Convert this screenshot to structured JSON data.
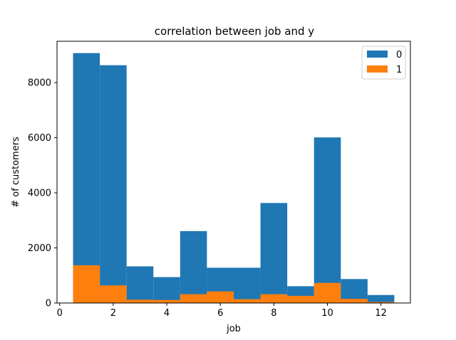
{
  "chart_data": {
    "type": "bar",
    "title": "correlation between job and y",
    "xlabel": "job",
    "ylabel": "# of customers",
    "x": [
      1,
      2,
      3,
      4,
      5,
      6,
      7,
      8,
      9,
      10,
      11,
      12
    ],
    "bar_width": 1,
    "xlim": [
      -0.1,
      13.1
    ],
    "ylim": [
      0,
      9500
    ],
    "xticks": [
      0,
      2,
      4,
      6,
      8,
      10,
      12
    ],
    "yticks": [
      0,
      2000,
      4000,
      6000,
      8000
    ],
    "series": [
      {
        "name": "0",
        "color": "#1f77b4",
        "values": [
          9070,
          8630,
          1330,
          940,
          2610,
          1280,
          1280,
          3630,
          610,
          6010,
          870,
          290
        ]
      },
      {
        "name": "1",
        "color": "#ff7f0e",
        "values": [
          1370,
          640,
          120,
          110,
          320,
          420,
          140,
          320,
          260,
          730,
          150,
          40
        ]
      }
    ],
    "legend_position": "top-right",
    "grid": false
  }
}
